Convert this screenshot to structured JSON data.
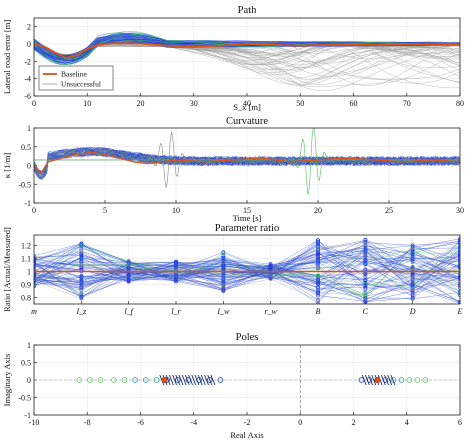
{
  "chart_data": [
    {
      "type": "line",
      "title": "Path",
      "xlabel": "S_x [m]",
      "ylabel": "Lateral road error [m]",
      "xlim": [
        0,
        80
      ],
      "ylim": [
        -6,
        3
      ],
      "xticks": [
        0,
        10,
        20,
        30,
        40,
        50,
        60,
        70,
        80
      ],
      "yticks": [
        -6,
        -4,
        -2,
        0,
        2
      ],
      "legend": {
        "placement": "bottom-left",
        "entries": [
          "Baseline",
          "Unsuccessful"
        ]
      },
      "series": [
        {
          "name": "Baseline",
          "color": "#d9541a",
          "x": [
            0,
            2,
            4,
            6,
            8,
            10,
            12,
            15,
            20,
            25,
            30,
            35,
            40,
            45,
            50,
            55,
            60,
            65,
            70,
            75,
            80
          ],
          "y": [
            0,
            -0.3,
            -1.0,
            -1.6,
            -1.3,
            -0.6,
            -0.1,
            0.1,
            0.05,
            -0.2,
            -0.3,
            -0.2,
            0.0,
            -0.1,
            -0.2,
            -0.1,
            0.0,
            -0.1,
            0.0,
            -0.1,
            0.0
          ]
        },
        {
          "name": "Unsuccessful",
          "color": "#9a9a9a",
          "x": [
            0,
            5,
            10,
            15,
            20,
            25,
            30,
            35,
            40,
            45,
            50,
            55,
            60,
            65,
            70,
            75,
            80
          ],
          "y": [
            0,
            -1.2,
            -0.6,
            0.5,
            0.3,
            -0.4,
            -0.8,
            -1.5,
            -2.2,
            -3.0,
            -3.8,
            -4.3,
            -5.0,
            -3.5,
            -4.6,
            -2.4,
            -1.5
          ]
        }
      ]
    },
    {
      "type": "line",
      "title": "Curvature",
      "xlabel": "Time [s]",
      "ylabel": "κ [1/m]",
      "xlim": [
        0,
        30
      ],
      "ylim": [
        -1,
        1
      ],
      "xticks": [
        0,
        5,
        10,
        15,
        20,
        25,
        30
      ],
      "yticks": [
        -1,
        -0.5,
        0,
        0.5,
        1
      ],
      "series": [
        {
          "name": "",
          "color": "#d9541a",
          "x": [
            0,
            0.5,
            1,
            2,
            3,
            4,
            5,
            6,
            7,
            8,
            9,
            10,
            12,
            14,
            16,
            18,
            20,
            22,
            24,
            26,
            28,
            30
          ],
          "y": [
            0,
            -0.2,
            0.1,
            0.2,
            0.3,
            0.35,
            0.3,
            0.2,
            0.1,
            0.05,
            0.1,
            0.15,
            0.1,
            0.15,
            0.2,
            0.1,
            0.15,
            0.2,
            0.15,
            0.1,
            0.15,
            0.1
          ]
        }
      ]
    },
    {
      "type": "line",
      "title": "Parameter ratio",
      "xlabel": "",
      "ylabel": "Ratio [Actual/Measured]",
      "categories": [
        "m",
        "I_z",
        "l_f",
        "l_r",
        "I_w",
        "r_w",
        "B",
        "C",
        "D",
        "E"
      ],
      "ylim": [
        0.75,
        1.28
      ],
      "yticks": [
        0.8,
        0.9,
        1,
        1.1,
        1.2
      ],
      "series": [
        {
          "name": "",
          "color": "#d9541a",
          "values": [
            1.0,
            1.0,
            1.0,
            1.0,
            1.0,
            1.0,
            1.0,
            1.0,
            1.0,
            1.0
          ]
        }
      ]
    },
    {
      "type": "scatter",
      "title": "Poles",
      "xlabel": "Real Axis",
      "ylabel": "Imaginary Axis",
      "xlim": [
        -10,
        6
      ],
      "ylim": [
        -1,
        1
      ],
      "xticks": [
        -10,
        -8,
        -6,
        -4,
        -2,
        0,
        2,
        4,
        6
      ],
      "yticks": [
        -1,
        -0.5,
        0,
        0.5,
        1
      ],
      "series": [
        {
          "name": "",
          "color": "#2a5fd0",
          "x": [
            -8.3,
            -7.9,
            -7.5,
            -7.0,
            -6.6,
            -6.2,
            -5.8,
            -5.4,
            -5.0,
            -4.6,
            -4.2,
            -3.8,
            -3.4,
            -3.0,
            2.3,
            2.6,
            2.9,
            3.2,
            3.5,
            3.8,
            4.1,
            4.4,
            4.7
          ],
          "y": [
            0,
            0,
            0,
            0,
            0,
            0,
            0,
            0,
            0,
            0,
            0,
            0,
            0,
            0,
            0,
            0,
            0,
            0,
            0,
            0,
            0,
            0,
            0
          ]
        },
        {
          "name": "",
          "color": "#d9541a",
          "x": [
            -5.1,
            2.9
          ],
          "y": [
            0,
            0
          ]
        }
      ]
    }
  ]
}
